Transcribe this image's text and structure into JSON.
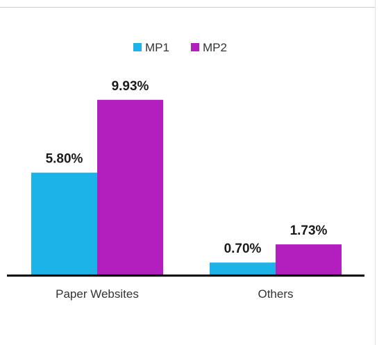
{
  "chart_data": {
    "type": "bar",
    "categories": [
      "Paper Websites",
      "Others"
    ],
    "series": [
      {
        "name": "MP1",
        "values": [
          5.8,
          0.7
        ],
        "labels": [
          "5.80%",
          "0.70%"
        ],
        "color": "#1bb3e8"
      },
      {
        "name": "MP2",
        "values": [
          9.93,
          1.73
        ],
        "labels": [
          "9.93%",
          "1.73%"
        ],
        "color": "#b31ebf"
      }
    ],
    "title": "",
    "xlabel": "",
    "ylabel": "",
    "ylim": [
      0,
      10
    ],
    "grid": false,
    "legend_position": "top-center",
    "axis_color": "#000000"
  }
}
